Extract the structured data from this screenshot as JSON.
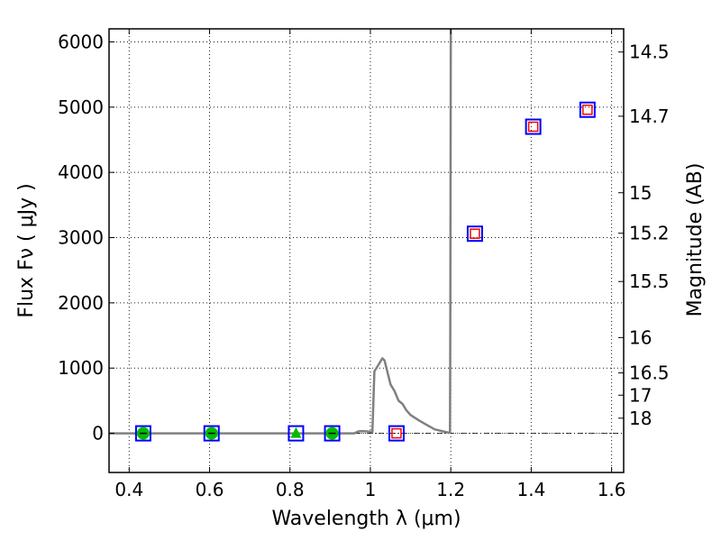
{
  "chart_data": {
    "type": "scatter",
    "xlabel": "Wavelength  λ (μm)",
    "ylabel": "Flux  Fν  ( μJy )",
    "ylabel_right": "Magnitude (AB)",
    "xlim": [
      0.35,
      1.63
    ],
    "ylim": [
      -600,
      6200
    ],
    "grid": true,
    "x_ticks": [
      0.4,
      0.6,
      0.8,
      1.0,
      1.2,
      1.4,
      1.6
    ],
    "x_tick_labels": [
      "0.4",
      "0.6",
      "0.8",
      "1",
      "1.2",
      "1.4",
      "1.6"
    ],
    "y_ticks": [
      0,
      1000,
      2000,
      3000,
      4000,
      5000,
      6000
    ],
    "y_tick_labels": [
      "0",
      "1000",
      "2000",
      "3000",
      "4000",
      "5000",
      "6000"
    ],
    "right_ticks": [
      {
        "label": "14.5",
        "flux": 5845
      },
      {
        "label": "14.7",
        "flux": 4861
      },
      {
        "label": "15",
        "flux": 3688
      },
      {
        "label": "15.2",
        "flux": 3067
      },
      {
        "label": "15.5",
        "flux": 2327
      },
      {
        "label": "16",
        "flux": 1468
      },
      {
        "label": "16.5",
        "flux": 926
      },
      {
        "label": "17",
        "flux": 585
      },
      {
        "label": "18",
        "flux": 232
      }
    ],
    "model_spectrum": {
      "color": "#808080",
      "x": [
        0.35,
        0.96,
        0.97,
        0.98,
        0.99,
        1.0,
        1.005,
        1.01,
        1.02,
        1.03,
        1.035,
        1.04,
        1.05,
        1.06,
        1.07,
        1.08,
        1.09,
        1.1,
        1.12,
        1.14,
        1.16,
        1.18,
        1.195,
        1.198,
        1.199,
        1.2,
        1.2
      ],
      "y": [
        0,
        0,
        30,
        35,
        30,
        25,
        20,
        950,
        1050,
        1150,
        1120,
        1000,
        750,
        650,
        500,
        450,
        350,
        280,
        200,
        130,
        60,
        30,
        10,
        10,
        2000,
        6200,
        6200
      ]
    },
    "series": [
      {
        "marker": "open-square",
        "color": "#0000ff",
        "x": [
          0.435,
          0.605,
          0.815,
          0.905,
          1.065,
          1.26,
          1.405,
          1.54
        ],
        "y": [
          0,
          0,
          0,
          0,
          0,
          3060,
          4700,
          4960
        ]
      },
      {
        "marker": "open-square",
        "color": "#ff0000",
        "x": [
          1.065,
          1.26,
          1.405,
          1.54
        ],
        "y": [
          0,
          3060,
          4700,
          4960
        ]
      },
      {
        "marker": "filled-circle",
        "color": "#00bb00",
        "x": [
          0.435,
          0.605,
          0.905
        ],
        "y": [
          0,
          0,
          0
        ]
      },
      {
        "marker": "filled-triangle",
        "color": "#00bb00",
        "x": [
          0.815
        ],
        "y": [
          0
        ]
      }
    ],
    "zero_line": {
      "y": 0,
      "style": "dash-dot"
    }
  }
}
